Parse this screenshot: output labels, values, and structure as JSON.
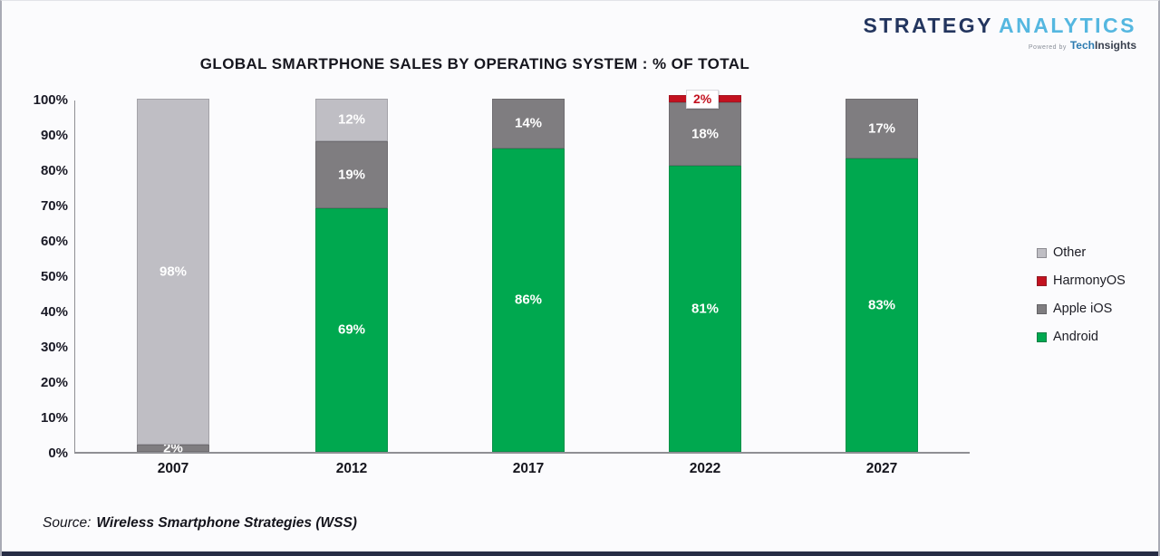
{
  "brand": {
    "name_part1": "STRATEGY",
    "name_part2": "ANALYTICS",
    "tagline_prefix": "Powered by",
    "tagline_tech": "Tech",
    "tagline_rest": "Insights"
  },
  "chart_data": {
    "type": "bar",
    "stacked": true,
    "title": "GLOBAL SMARTPHONE SALES BY OPERATING SYSTEM : % OF TOTAL",
    "categories": [
      "2007",
      "2012",
      "2017",
      "2022",
      "2027"
    ],
    "series": [
      {
        "name": "Android",
        "color": "#00a84f",
        "values": [
          0,
          69,
          86,
          81,
          83
        ]
      },
      {
        "name": "Apple iOS",
        "color": "#7f7d80",
        "values": [
          2,
          19,
          14,
          18,
          17
        ]
      },
      {
        "name": "HarmonyOS",
        "color": "#c3111f",
        "values": [
          0,
          0,
          0,
          2,
          0
        ]
      },
      {
        "name": "Other",
        "color": "#bfbec4",
        "values": [
          98,
          12,
          0,
          0,
          0
        ]
      }
    ],
    "y_ticks": [
      "100%",
      "90%",
      "80%",
      "70%",
      "60%",
      "50%",
      "40%",
      "30%",
      "20%",
      "10%",
      "0%"
    ],
    "ylim": [
      0,
      100
    ],
    "grid": false,
    "legend_position": "right",
    "legend_order": [
      "Other",
      "HarmonyOS",
      "Apple iOS",
      "Android"
    ],
    "segment_label_format": "{value}%"
  },
  "source": {
    "prefix": "Source:",
    "text": "Wireless Smartphone Strategies (WSS)"
  }
}
